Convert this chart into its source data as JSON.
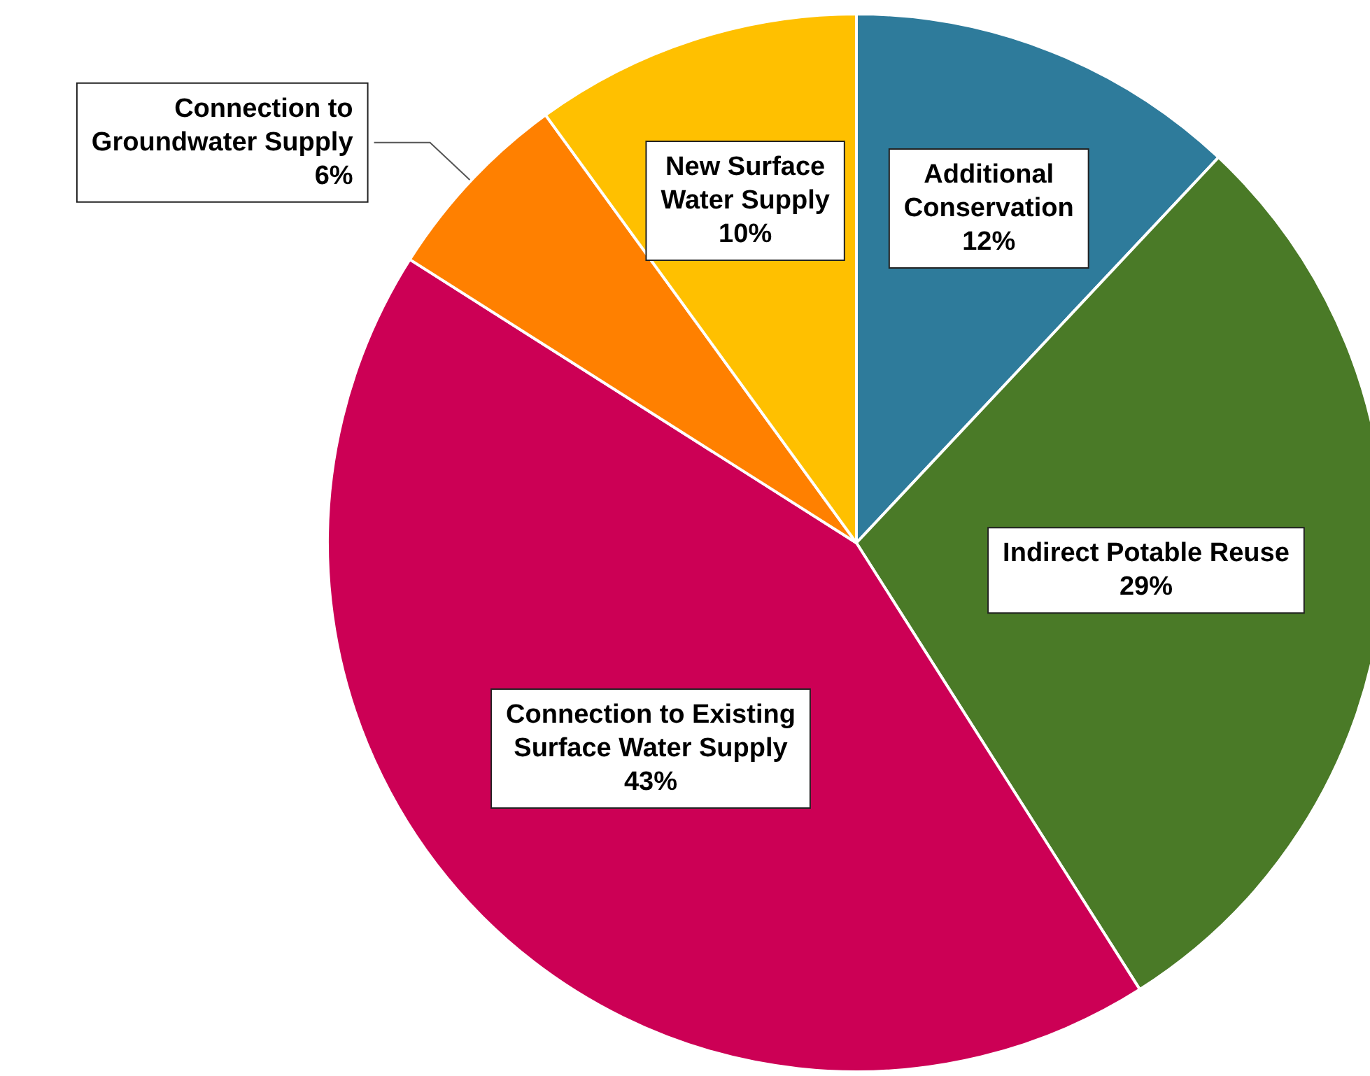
{
  "chart_data": {
    "type": "pie",
    "categories": [
      "Additional\nConservation",
      "Indirect Potable Reuse",
      "Connection to Existing\nSurface Water Supply",
      "Connection to\nGroundwater Supply",
      "New Surface\nWater Supply"
    ],
    "values": [
      12,
      29,
      43,
      6,
      10
    ],
    "value_labels": [
      "12%",
      "29%",
      "43%",
      "6%",
      "10%"
    ],
    "colors": [
      "#2e7b9b",
      "#4a7a27",
      "#cc0055",
      "#ff8000",
      "#ffc000"
    ],
    "legend": false
  }
}
